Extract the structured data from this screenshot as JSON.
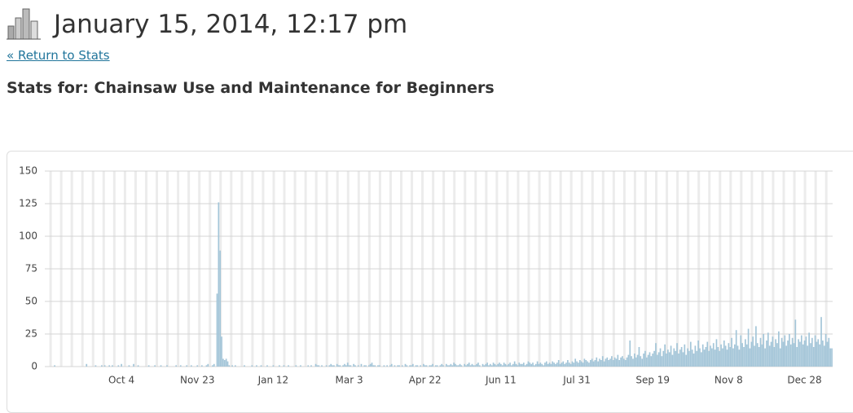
{
  "header": {
    "title": "January 15, 2014, 12:17 pm",
    "link": "« Return to Stats",
    "heading": "Stats for: Chainsaw Use and Maintenance for Beginners"
  },
  "chart_data": {
    "type": "bar",
    "color": "#a3c5d8",
    "ylim": [
      0,
      150
    ],
    "yticks": [
      0,
      25,
      50,
      75,
      100,
      125,
      150
    ],
    "grid": true,
    "categories": [
      null,
      null,
      null,
      null,
      null,
      null,
      null,
      null,
      null,
      null,
      null,
      null,
      null,
      null,
      null,
      null,
      null,
      null,
      null,
      null,
      null,
      null,
      null,
      null,
      null,
      null,
      null,
      null,
      null,
      null,
      null,
      null,
      null,
      null,
      null,
      null,
      null,
      null,
      null,
      null,
      null,
      null,
      null,
      null,
      null,
      null,
      null,
      null,
      null,
      null,
      "Oct 4",
      null,
      null,
      null,
      null,
      null,
      null,
      null,
      null,
      null,
      null,
      null,
      null,
      null,
      null,
      null,
      null,
      null,
      null,
      null,
      null,
      null,
      null,
      null,
      null,
      null,
      null,
      null,
      null,
      null,
      null,
      null,
      null,
      null,
      null,
      null,
      null,
      null,
      null,
      null,
      null,
      null,
      null,
      null,
      null,
      null,
      null,
      null,
      null,
      null,
      "Nov 23",
      null,
      null,
      null,
      null,
      null,
      null,
      null,
      null,
      null,
      null,
      null,
      null,
      null,
      null,
      null,
      null,
      null,
      null,
      null,
      null,
      null,
      null,
      null,
      null,
      null,
      null,
      null,
      null,
      null,
      null,
      null,
      null,
      null,
      null,
      null,
      null,
      null,
      null,
      null,
      null,
      null,
      null,
      null,
      null,
      null,
      null,
      null,
      null,
      null,
      "Jan 12",
      null,
      null,
      null,
      null,
      null,
      null,
      null,
      null,
      null,
      null,
      null,
      null,
      null,
      null,
      null,
      null,
      null,
      null,
      null,
      null,
      null,
      null,
      null,
      null,
      null,
      null,
      null,
      null,
      null,
      null,
      null,
      null,
      null,
      null,
      null,
      null,
      null,
      null,
      null,
      null,
      null,
      null,
      null,
      null,
      null,
      null,
      null,
      null,
      null,
      "Mar 3",
      null,
      null,
      null,
      null,
      null,
      null,
      null,
      null,
      null,
      null,
      null,
      null,
      null,
      null,
      null,
      null,
      null,
      null,
      null,
      null,
      null,
      null,
      null,
      null,
      null,
      null,
      null,
      null,
      null,
      null,
      null,
      null,
      null,
      null,
      null,
      null,
      null,
      null,
      null,
      null,
      null,
      null,
      null,
      null,
      null,
      null,
      null,
      null,
      null,
      "Apr 22",
      null,
      null,
      null,
      null,
      null,
      null,
      null,
      null,
      null,
      null,
      null,
      null,
      null,
      null,
      null,
      null,
      null,
      null,
      null,
      null,
      null,
      null,
      null,
      null,
      null,
      null,
      null,
      null,
      null,
      null,
      null,
      null,
      null,
      null,
      null,
      null,
      null,
      null,
      null,
      null,
      null,
      null,
      null,
      null,
      null,
      null,
      null,
      null,
      null,
      "Jun 11",
      null,
      null,
      null,
      null,
      null,
      null,
      null,
      null,
      null,
      null,
      null,
      null,
      null,
      null,
      null,
      null,
      null,
      null,
      null,
      null,
      null,
      null,
      null,
      null,
      null,
      null,
      null,
      null,
      null,
      null,
      null,
      null,
      null,
      null,
      null,
      null,
      null,
      null,
      null,
      null,
      null,
      null,
      null,
      null,
      null,
      null,
      null,
      null,
      null,
      "Jul 31",
      null,
      null,
      null,
      null,
      null,
      null,
      null,
      null,
      null,
      null,
      null,
      null,
      null,
      null,
      null,
      null,
      null,
      null,
      null,
      null,
      null,
      null,
      null,
      null,
      null,
      null,
      null,
      null,
      null,
      null,
      null,
      null,
      null,
      null,
      null,
      null,
      null,
      null,
      null,
      null,
      null,
      null,
      null,
      null,
      null,
      null,
      null,
      null,
      null,
      "Sep 19",
      null,
      null,
      null,
      null,
      null,
      null,
      null,
      null,
      null,
      null,
      null,
      null,
      null,
      null,
      null,
      null,
      null,
      null,
      null,
      null,
      null,
      null,
      null,
      null,
      null,
      null,
      null,
      null,
      null,
      null,
      null,
      null,
      null,
      null,
      null,
      null,
      null,
      null,
      null,
      null,
      null,
      null,
      null,
      null,
      null,
      null,
      null,
      null,
      null,
      "Nov 8",
      null,
      null,
      null,
      null,
      null,
      null,
      null,
      null,
      null,
      null,
      null,
      null,
      null,
      null,
      null,
      null,
      null,
      null,
      null,
      null,
      null,
      null,
      null,
      null,
      null,
      null,
      null,
      null,
      null,
      null,
      null,
      null,
      null,
      null,
      null,
      null,
      null,
      null,
      null,
      null,
      null,
      null,
      null,
      null,
      null,
      null,
      null,
      null,
      null,
      "Dec 28",
      null,
      null,
      null,
      null,
      null,
      null,
      null,
      null,
      null,
      null,
      null,
      null,
      null,
      null,
      null,
      null,
      null,
      null
    ],
    "values": [
      0,
      0,
      0,
      0,
      0,
      0,
      1,
      0,
      0,
      0,
      0,
      0,
      0,
      0,
      0,
      0,
      0,
      0,
      0,
      0,
      0,
      0,
      0,
      0,
      0,
      0,
      0,
      2,
      0,
      0,
      0,
      0,
      0,
      1,
      0,
      0,
      0,
      1,
      0,
      1,
      0,
      0,
      1,
      0,
      1,
      0,
      0,
      0,
      1,
      0,
      2,
      0,
      0,
      0,
      0,
      1,
      0,
      0,
      2,
      0,
      0,
      1,
      0,
      0,
      0,
      0,
      0,
      0,
      1,
      0,
      0,
      0,
      1,
      0,
      0,
      0,
      1,
      0,
      0,
      0,
      1,
      0,
      0,
      0,
      0,
      0,
      1,
      0,
      0,
      1,
      0,
      0,
      0,
      1,
      0,
      0,
      1,
      0,
      0,
      0,
      1,
      0,
      0,
      1,
      0,
      0,
      1,
      2,
      0,
      0,
      1,
      2,
      0,
      56,
      126,
      89,
      23,
      6,
      5,
      6,
      4,
      1,
      0,
      1,
      0,
      1,
      0,
      0,
      0,
      0,
      0,
      1,
      0,
      0,
      0,
      0,
      1,
      0,
      0,
      1,
      0,
      0,
      1,
      0,
      0,
      0,
      1,
      0,
      0,
      0,
      1,
      0,
      0,
      0,
      1,
      0,
      0,
      1,
      0,
      0,
      1,
      0,
      0,
      0,
      0,
      1,
      0,
      0,
      1,
      0,
      0,
      0,
      0,
      1,
      0,
      1,
      0,
      0,
      2,
      1,
      1,
      0,
      1,
      0,
      0,
      1,
      0,
      1,
      2,
      1,
      1,
      0,
      2,
      1,
      1,
      0,
      1,
      2,
      1,
      3,
      1,
      1,
      0,
      2,
      1,
      0,
      1,
      0,
      2,
      0,
      1,
      1,
      0,
      1,
      2,
      3,
      1,
      1,
      0,
      1,
      1,
      0,
      0,
      1,
      0,
      1,
      0,
      1,
      2,
      0,
      1,
      0,
      1,
      1,
      0,
      1,
      0,
      2,
      1,
      0,
      1,
      1,
      2,
      0,
      1,
      1,
      0,
      1,
      0,
      2,
      1,
      1,
      0,
      1,
      1,
      2,
      0,
      1,
      1,
      0,
      1,
      2,
      1,
      0,
      2,
      1,
      1,
      2,
      1,
      3,
      2,
      1,
      1,
      2,
      1,
      0,
      2,
      1,
      2,
      3,
      1,
      2,
      1,
      1,
      2,
      3,
      1,
      0,
      2,
      1,
      2,
      3,
      1,
      2,
      1,
      3,
      2,
      1,
      2,
      3,
      2,
      1,
      3,
      2,
      1,
      2,
      3,
      1,
      2,
      4,
      2,
      1,
      3,
      2,
      2,
      3,
      1,
      2,
      4,
      3,
      2,
      3,
      1,
      2,
      4,
      2,
      3,
      2,
      1,
      3,
      4,
      2,
      3,
      2,
      4,
      3,
      2,
      3,
      5,
      2,
      3,
      4,
      2,
      3,
      5,
      3,
      2,
      4,
      3,
      6,
      4,
      3,
      5,
      4,
      3,
      6,
      5,
      4,
      3,
      5,
      6,
      4,
      5,
      7,
      4,
      6,
      5,
      8,
      4,
      6,
      7,
      5,
      6,
      8,
      5,
      7,
      6,
      9,
      5,
      7,
      8,
      6,
      5,
      7,
      9,
      20,
      8,
      6,
      10,
      7,
      9,
      15,
      8,
      6,
      10,
      12,
      7,
      9,
      11,
      8,
      10,
      12,
      18,
      9,
      11,
      14,
      8,
      12,
      17,
      10,
      13,
      11,
      16,
      9,
      14,
      12,
      18,
      10,
      13,
      15,
      11,
      17,
      9,
      14,
      12,
      19,
      13,
      10,
      16,
      12,
      20,
      14,
      11,
      17,
      13,
      15,
      19,
      12,
      16,
      14,
      18,
      13,
      21,
      15,
      12,
      17,
      14,
      20,
      16,
      13,
      18,
      15,
      22,
      14,
      17,
      28,
      16,
      13,
      24,
      18,
      15,
      21,
      17,
      29,
      14,
      19,
      23,
      16,
      31,
      18,
      15,
      22,
      17,
      25,
      14,
      20,
      26,
      16,
      19,
      23,
      15,
      21,
      18,
      27,
      14,
      22,
      19,
      24,
      16,
      20,
      25,
      17,
      22,
      18,
      36,
      15,
      21,
      19,
      24,
      17,
      20,
      23,
      16,
      26,
      18,
      22,
      15,
      24,
      19,
      21,
      17,
      38,
      20,
      16,
      25,
      19,
      22,
      14,
      14
    ]
  }
}
